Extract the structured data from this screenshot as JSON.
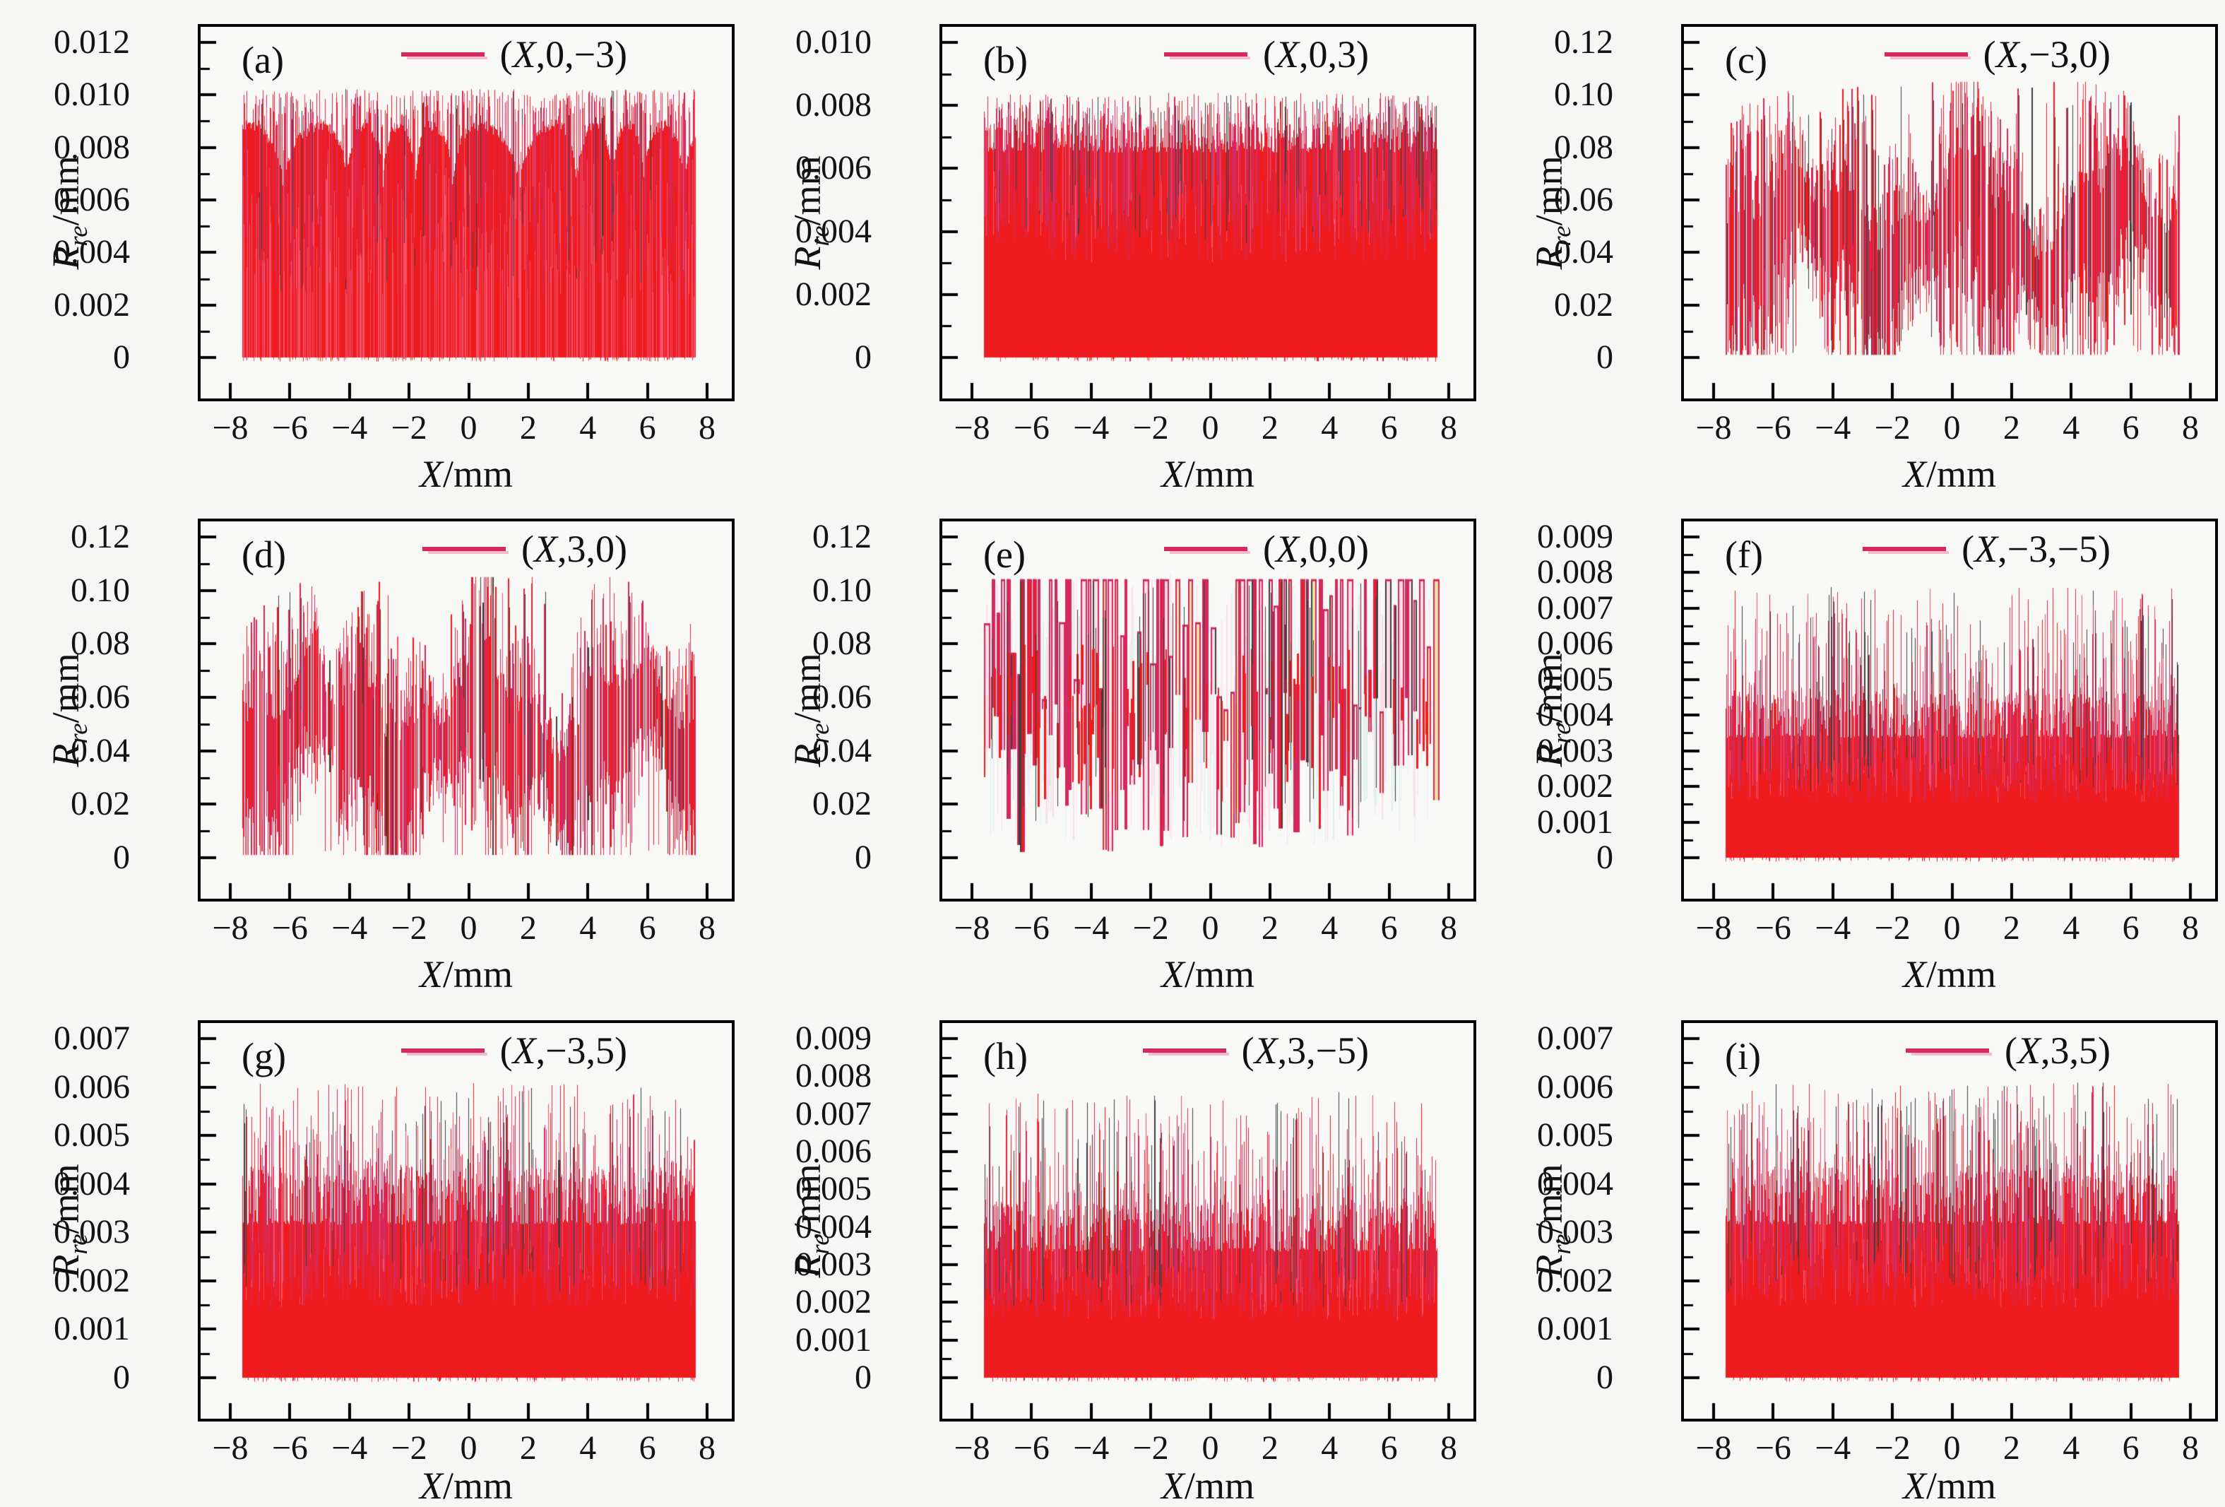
{
  "figure": {
    "background_color": "#f6f6f4",
    "plot_background_color": "#f8f8f6",
    "axis_color": "#000000",
    "text_color": "#141414",
    "colors": {
      "red": "#ee1c1f",
      "stripe": "#f4506a",
      "crimson": "#d4295e",
      "pink": "#f27ba0",
      "cream": "#ecdfa4",
      "dark": "#3f3f3f",
      "pink_bg": "#fbdde8",
      "cyan_bg": "#dff2ee",
      "legend_line": "#d4295e",
      "legend_underline": "#f7b9cd"
    },
    "xlabel_prefix": "X",
    "xlabel_suffix": "/mm",
    "ylabel_main": "R",
    "ylabel_sub": "re",
    "ylabel_suffix": "/mm",
    "x_tick_labels": [
      "−8",
      "−6",
      "−4",
      "−2",
      "0",
      "2",
      "4",
      "6",
      "8"
    ],
    "x_tick_values": [
      -8,
      -6,
      -4,
      -2,
      0,
      2,
      4,
      6,
      8
    ],
    "x_data_range": [
      -7.6,
      7.6
    ]
  },
  "chart_data": [
    {
      "id": "a",
      "panel_label": "(a)",
      "legend": "(X,0,−3)",
      "type": "line",
      "pattern": "comb_fill",
      "xlabel": "X/mm",
      "ylabel": "Rre/mm",
      "xlim": [
        -8,
        8
      ],
      "ylim": [
        0,
        0.012
      ],
      "y_tick_labels": [
        "0",
        "0.002",
        "0.004",
        "0.006",
        "0.008",
        "0.010",
        "0.012"
      ],
      "y_tick_values": [
        0,
        0.002,
        0.004,
        0.006,
        0.008,
        0.01,
        0.012
      ],
      "params": {
        "base_top": 0.0089,
        "dip_min": 0.0042,
        "dip_period": 1.55,
        "spike_max": 0.0104,
        "spike_count": 430
      },
      "description": "dense red noise filled 0 to ~0.009 mm with quasi-periodic dips to ~0.004 and spikes up to ~0.0104"
    },
    {
      "id": "b",
      "panel_label": "(b)",
      "legend": "(X,0,3)",
      "type": "line",
      "pattern": "flat_fill",
      "xlabel": "X/mm",
      "ylabel": "Rre/mm",
      "xlim": [
        -8,
        8
      ],
      "ylim": [
        0,
        0.01
      ],
      "y_tick_labels": [
        "0",
        "0.002",
        "0.004",
        "0.006",
        "0.008",
        "0.010"
      ],
      "y_tick_values": [
        0,
        0.002,
        0.004,
        0.006,
        0.008,
        0.01
      ],
      "params": {
        "base_top": 0.0066,
        "band_top": 0.0073,
        "spike_max": 0.0084,
        "spike_count": 480,
        "band_count": 700
      },
      "description": "uniform dense red noise filled 0 to ~0.0066 mm with spikes up to ~0.0084"
    },
    {
      "id": "c",
      "panel_label": "(c)",
      "legend": "(X,−3,0)",
      "type": "line",
      "pattern": "spiky",
      "xlabel": "X/mm",
      "ylabel": "Rre/mm",
      "xlim": [
        -8,
        8
      ],
      "ylim": [
        0,
        0.12
      ],
      "y_tick_labels": [
        "0",
        "0.02",
        "0.04",
        "0.06",
        "0.08",
        "0.10",
        "0.12"
      ],
      "y_tick_values": [
        0,
        0.02,
        0.04,
        0.06,
        0.08,
        0.1,
        0.12
      ],
      "params": {
        "center": 0.044,
        "spike_top": 0.105,
        "tall_count": 13
      },
      "description": "sparse oscillating spikes centred ~0.045 mm, envelope modulated, extremes near 0 and up to ~0.105"
    },
    {
      "id": "d",
      "panel_label": "(d)",
      "legend": "(X,3,0)",
      "type": "line",
      "pattern": "spiky",
      "xlabel": "X/mm",
      "ylabel": "Rre/mm",
      "xlim": [
        -8,
        8
      ],
      "ylim": [
        0,
        0.12
      ],
      "y_tick_labels": [
        "0",
        "0.02",
        "0.04",
        "0.06",
        "0.08",
        "0.10",
        "0.12"
      ],
      "y_tick_values": [
        0,
        0.02,
        0.04,
        0.06,
        0.08,
        0.1,
        0.12
      ],
      "params": {
        "center": 0.044,
        "spike_top": 0.105,
        "tall_count": 13
      },
      "description": "sparse oscillating spikes centred ~0.045 mm, envelope modulated, extremes near 0 and up to ~0.105"
    },
    {
      "id": "e",
      "panel_label": "(e)",
      "legend": "(X,0,0)",
      "type": "line",
      "pattern": "clipped",
      "xlabel": "X/mm",
      "ylabel": "Rre/mm",
      "xlim": [
        -8,
        8
      ],
      "ylim": [
        0,
        0.12
      ],
      "y_tick_labels": [
        "0",
        "0.02",
        "0.04",
        "0.06",
        "0.08",
        "0.10",
        "0.12"
      ],
      "y_tick_values": [
        0,
        0.02,
        0.04,
        0.06,
        0.08,
        0.1,
        0.12
      ],
      "params": {
        "cap": 0.1042
      },
      "description": "tall narrow bars, most clipped flat at ~0.104 mm, valleys reaching down to ~0"
    },
    {
      "id": "f",
      "panel_label": "(f)",
      "legend": "(X,−3,−5)",
      "type": "line",
      "pattern": "flat_fill",
      "xlabel": "X/mm",
      "ylabel": "Rre/mm",
      "xlim": [
        -8,
        8
      ],
      "ylim": [
        0,
        0.009
      ],
      "y_tick_labels": [
        "0",
        "0.001",
        "0.002",
        "0.003",
        "0.004",
        "0.005",
        "0.006",
        "0.007",
        "0.008",
        "0.009"
      ],
      "y_tick_values": [
        0,
        0.001,
        0.002,
        0.003,
        0.004,
        0.005,
        0.006,
        0.007,
        0.008,
        0.009
      ],
      "params": {
        "base_top": 0.0034,
        "band_top": 0.0046,
        "spike_max": 0.0076,
        "spike_count": 320,
        "band_count": 950
      },
      "description": "solid red band 0 to ~0.0034 mm, dense texture to ~0.0046, sharp spikes up to ~0.0076"
    },
    {
      "id": "g",
      "panel_label": "(g)",
      "legend": "(X,−3,5)",
      "type": "line",
      "pattern": "flat_fill",
      "xlabel": "X/mm",
      "ylabel": "Rre/mm",
      "xlim": [
        -8,
        8
      ],
      "ylim": [
        0,
        0.007
      ],
      "y_tick_labels": [
        "0",
        "0.001",
        "0.002",
        "0.003",
        "0.004",
        "0.005",
        "0.006",
        "0.007"
      ],
      "y_tick_values": [
        0,
        0.001,
        0.002,
        0.003,
        0.004,
        0.005,
        0.006,
        0.007
      ],
      "params": {
        "base_top": 0.0032,
        "band_top": 0.0043,
        "spike_max": 0.0061,
        "spike_count": 320,
        "band_count": 950
      },
      "description": "solid red band 0 to ~0.0032 mm, dense texture to ~0.0043, sharp spikes up to ~0.0061"
    },
    {
      "id": "h",
      "panel_label": "(h)",
      "legend": "(X,3,−5)",
      "type": "line",
      "pattern": "flat_fill",
      "xlabel": "X/mm",
      "ylabel": "Rre/mm",
      "xlim": [
        -8,
        8
      ],
      "ylim": [
        0,
        0.009
      ],
      "y_tick_labels": [
        "0",
        "0.001",
        "0.002",
        "0.003",
        "0.004",
        "0.005",
        "0.006",
        "0.007",
        "0.008",
        "0.009"
      ],
      "y_tick_values": [
        0,
        0.001,
        0.002,
        0.003,
        0.004,
        0.005,
        0.006,
        0.007,
        0.008,
        0.009
      ],
      "params": {
        "base_top": 0.0034,
        "band_top": 0.0046,
        "spike_max": 0.0076,
        "spike_count": 320,
        "band_count": 950
      },
      "description": "solid red band 0 to ~0.0034 mm, dense texture to ~0.0046, sharp spikes up to ~0.0076"
    },
    {
      "id": "i",
      "panel_label": "(i)",
      "legend": "(X,3,5)",
      "type": "line",
      "pattern": "flat_fill",
      "xlabel": "X/mm",
      "ylabel": "Rre/mm",
      "xlim": [
        -8,
        8
      ],
      "ylim": [
        0,
        0.007
      ],
      "y_tick_labels": [
        "0",
        "0.001",
        "0.002",
        "0.003",
        "0.004",
        "0.005",
        "0.006",
        "0.007"
      ],
      "y_tick_values": [
        0,
        0.001,
        0.002,
        0.003,
        0.004,
        0.005,
        0.006,
        0.007
      ],
      "params": {
        "base_top": 0.0032,
        "band_top": 0.0043,
        "spike_max": 0.0061,
        "spike_count": 320,
        "band_count": 950
      },
      "description": "solid red band 0 to ~0.0032 mm, dense texture to ~0.0043, sharp spikes up to ~0.0061"
    }
  ]
}
